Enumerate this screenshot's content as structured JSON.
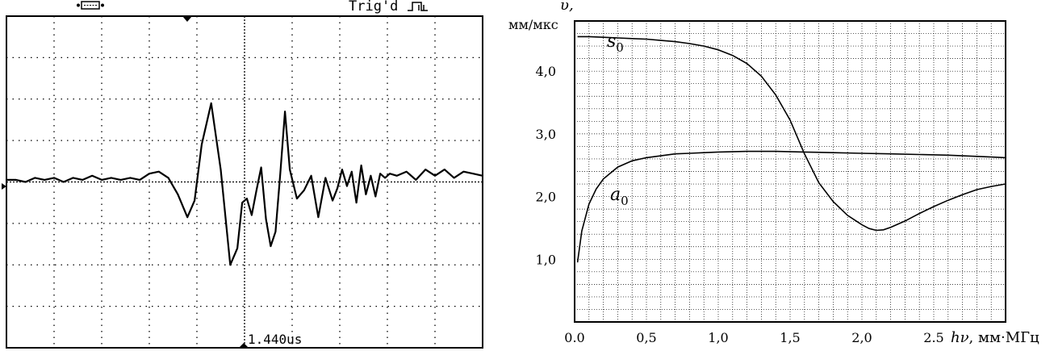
{
  "scope": {
    "trigger_label": "Trig'd",
    "time_readout": "1.440us"
  },
  "chart_data": [
    {
      "type": "line",
      "title": "",
      "xlabel": "",
      "ylabel": "",
      "grid": true,
      "divisions": {
        "x": 10,
        "y": 8
      },
      "xlim": [
        0,
        10
      ],
      "ylim": [
        -4,
        4
      ],
      "series": [
        {
          "x": [
            0,
            0.2,
            0.4,
            0.6,
            0.8,
            1.0,
            1.2,
            1.4,
            1.6,
            1.8,
            2.0,
            2.2,
            2.4,
            2.6,
            2.8,
            3.0,
            3.2,
            3.4,
            3.6,
            3.8,
            3.95,
            4.1,
            4.3,
            4.5,
            4.7,
            4.85,
            4.95,
            5.05,
            5.15,
            5.25,
            5.35,
            5.45,
            5.55,
            5.65,
            5.75,
            5.85,
            5.95,
            6.1,
            6.25,
            6.4,
            6.55,
            6.7,
            6.85,
            6.95,
            7.05,
            7.15,
            7.25,
            7.35,
            7.45,
            7.55,
            7.65,
            7.75,
            7.85,
            7.95,
            8.05,
            8.2,
            8.4,
            8.6,
            8.8,
            9.0,
            9.2,
            9.4,
            9.6,
            9.8,
            10.0
          ],
          "y": [
            0.05,
            0.05,
            0.0,
            0.1,
            0.05,
            0.1,
            0.0,
            0.1,
            0.05,
            0.15,
            0.05,
            0.1,
            0.05,
            0.1,
            0.05,
            0.2,
            0.25,
            0.1,
            -0.3,
            -0.85,
            -0.45,
            0.9,
            1.9,
            0.3,
            -2.0,
            -1.6,
            -0.5,
            -0.4,
            -0.8,
            -0.2,
            0.35,
            -0.9,
            -1.55,
            -1.2,
            0.2,
            1.7,
            0.3,
            -0.4,
            -0.2,
            0.15,
            -0.85,
            0.1,
            -0.45,
            -0.15,
            0.3,
            -0.1,
            0.25,
            -0.5,
            0.4,
            -0.3,
            0.15,
            -0.35,
            0.2,
            0.1,
            0.2,
            0.15,
            0.25,
            0.05,
            0.3,
            0.15,
            0.3,
            0.1,
            0.25,
            0.2,
            0.15
          ]
        }
      ]
    },
    {
      "type": "line",
      "title": "",
      "xlabel": "hν, мм·МГц",
      "ylabel": "υ, мм/мкс",
      "grid": true,
      "xlim": [
        0,
        3.0
      ],
      "ylim": [
        0,
        4.8
      ],
      "x_ticks": [
        "0.0",
        "0,5",
        "1,0",
        "1,5",
        "2,0",
        "2.5"
      ],
      "y_ticks": [
        "1,0",
        "2,0",
        "3,0",
        "4,0"
      ],
      "series": [
        {
          "name": "s0",
          "x": [
            0.02,
            0.1,
            0.2,
            0.3,
            0.4,
            0.5,
            0.6,
            0.7,
            0.8,
            0.9,
            1.0,
            1.1,
            1.2,
            1.3,
            1.4,
            1.5,
            1.6,
            1.7,
            1.8,
            1.9,
            2.0,
            2.05,
            2.1,
            2.15,
            2.2,
            2.3,
            2.4,
            2.5,
            2.6,
            2.7,
            2.8,
            2.9,
            3.0
          ],
          "y": [
            4.55,
            4.55,
            4.54,
            4.53,
            4.52,
            4.51,
            4.49,
            4.47,
            4.44,
            4.4,
            4.34,
            4.25,
            4.12,
            3.92,
            3.62,
            3.22,
            2.68,
            2.22,
            1.92,
            1.7,
            1.55,
            1.49,
            1.46,
            1.47,
            1.51,
            1.61,
            1.73,
            1.84,
            1.94,
            2.03,
            2.11,
            2.16,
            2.2
          ]
        },
        {
          "name": "a0",
          "x": [
            0.02,
            0.05,
            0.1,
            0.15,
            0.2,
            0.3,
            0.4,
            0.5,
            0.6,
            0.7,
            0.8,
            0.9,
            1.0,
            1.2,
            1.4,
            1.6,
            1.8,
            2.0,
            2.2,
            2.4,
            2.6,
            2.8,
            2.9,
            3.0
          ],
          "y": [
            0.95,
            1.45,
            1.88,
            2.12,
            2.28,
            2.47,
            2.57,
            2.62,
            2.65,
            2.68,
            2.69,
            2.7,
            2.71,
            2.72,
            2.72,
            2.71,
            2.7,
            2.69,
            2.68,
            2.67,
            2.66,
            2.64,
            2.63,
            2.62
          ]
        }
      ]
    }
  ]
}
